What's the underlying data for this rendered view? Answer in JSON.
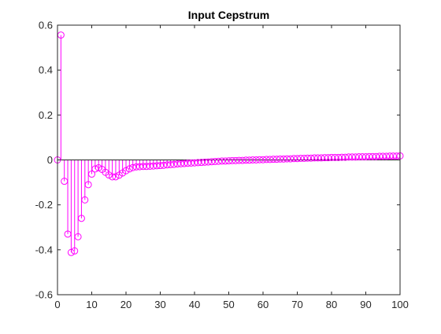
{
  "chart_data": {
    "type": "stem",
    "title": "Input Cepstrum",
    "xlabel": "",
    "ylabel": "",
    "xlim": [
      0,
      100
    ],
    "ylim": [
      -0.6,
      0.6
    ],
    "xticks": [
      0,
      10,
      20,
      30,
      40,
      50,
      60,
      70,
      80,
      90,
      100
    ],
    "yticks": [
      -0.6,
      -0.4,
      -0.2,
      0,
      0.2,
      0.4,
      0.6
    ],
    "xtick_labels": [
      "0",
      "10",
      "20",
      "30",
      "40",
      "50",
      "60",
      "70",
      "80",
      "90",
      "100"
    ],
    "ytick_labels": [
      "-0.6",
      "-0.4",
      "-0.2",
      "0",
      "0.2",
      "0.4",
      "0.6"
    ],
    "grid": false,
    "marker": "circle",
    "series": [
      {
        "color": "#ff00ff",
        "x": [
          0,
          1,
          2,
          3,
          4,
          5,
          6,
          7,
          8,
          9,
          10,
          11,
          12,
          13,
          14,
          15,
          16,
          17,
          18,
          19,
          20,
          21,
          22,
          23,
          24,
          25,
          26,
          27,
          28,
          29,
          30,
          31,
          32,
          33,
          34,
          35,
          36,
          37,
          38,
          39,
          40,
          41,
          42,
          43,
          44,
          45,
          46,
          47,
          48,
          49,
          50,
          51,
          52,
          53,
          54,
          55,
          56,
          57,
          58,
          59,
          60,
          61,
          62,
          63,
          64,
          65,
          66,
          67,
          68,
          69,
          70,
          71,
          72,
          73,
          74,
          75,
          76,
          77,
          78,
          79,
          80,
          81,
          82,
          83,
          84,
          85,
          86,
          87,
          88,
          89,
          90,
          91,
          92,
          93,
          94,
          95,
          96,
          97,
          98,
          99,
          100
        ],
        "y": [
          0.0,
          0.556,
          -0.095,
          -0.33,
          -0.412,
          -0.405,
          -0.342,
          -0.26,
          -0.178,
          -0.11,
          -0.063,
          -0.04,
          -0.035,
          -0.042,
          -0.055,
          -0.067,
          -0.075,
          -0.075,
          -0.068,
          -0.058,
          -0.048,
          -0.04,
          -0.034,
          -0.031,
          -0.03,
          -0.029,
          -0.029,
          -0.028,
          -0.027,
          -0.026,
          -0.025,
          -0.024,
          -0.022,
          -0.021,
          -0.02,
          -0.018,
          -0.017,
          -0.016,
          -0.015,
          -0.014,
          -0.013,
          -0.012,
          -0.011,
          -0.01,
          -0.009,
          -0.008,
          -0.007,
          -0.006,
          -0.005,
          -0.005,
          -0.004,
          -0.003,
          -0.003,
          -0.002,
          -0.002,
          -0.001,
          -0.001,
          0.0,
          0.0,
          0.001,
          0.001,
          0.002,
          0.002,
          0.003,
          0.003,
          0.004,
          0.004,
          0.005,
          0.005,
          0.006,
          0.006,
          0.007,
          0.007,
          0.008,
          0.008,
          0.009,
          0.009,
          0.009,
          0.01,
          0.01,
          0.011,
          0.011,
          0.011,
          0.012,
          0.012,
          0.013,
          0.013,
          0.013,
          0.014,
          0.014,
          0.014,
          0.015,
          0.015,
          0.015,
          0.016,
          0.016,
          0.016,
          0.017,
          0.017,
          0.017,
          0.018
        ]
      }
    ]
  }
}
